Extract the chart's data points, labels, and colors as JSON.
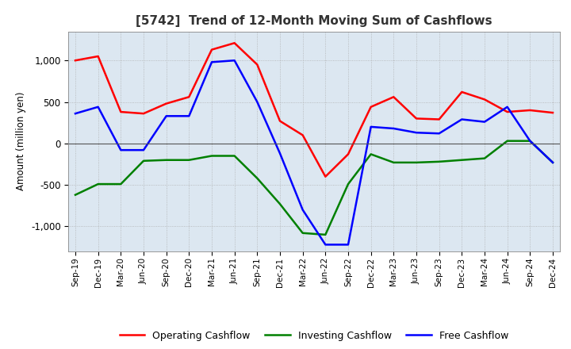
{
  "title": "[5742]  Trend of 12-Month Moving Sum of Cashflows",
  "ylabel": "Amount (million yen)",
  "ylim": [
    -1300,
    1350
  ],
  "yticks": [
    -1000,
    -500,
    0,
    500,
    1000
  ],
  "plot_background": "#dce7f1",
  "x_labels": [
    "Sep-19",
    "Dec-19",
    "Mar-20",
    "Jun-20",
    "Sep-20",
    "Dec-20",
    "Mar-21",
    "Jun-21",
    "Sep-21",
    "Dec-21",
    "Mar-22",
    "Jun-22",
    "Sep-22",
    "Dec-22",
    "Mar-23",
    "Jun-23",
    "Sep-23",
    "Dec-23",
    "Mar-24",
    "Jun-24",
    "Sep-24",
    "Dec-24"
  ],
  "operating": [
    1000,
    1050,
    380,
    360,
    480,
    560,
    1130,
    1210,
    950,
    270,
    100,
    -400,
    -130,
    440,
    560,
    300,
    290,
    620,
    530,
    380,
    400,
    370
  ],
  "investing": [
    -620,
    -490,
    -490,
    -210,
    -200,
    -200,
    -150,
    -150,
    -420,
    -730,
    -1080,
    -1100,
    -490,
    -130,
    -230,
    -230,
    -220,
    -200,
    -180,
    30,
    30,
    -230
  ],
  "free": [
    360,
    440,
    -80,
    -80,
    330,
    330,
    980,
    1000,
    500,
    -120,
    -800,
    -1220,
    -1220,
    200,
    180,
    130,
    120,
    290,
    260,
    440,
    30,
    -230
  ],
  "operating_color": "#ff0000",
  "investing_color": "#008000",
  "free_color": "#0000ff",
  "line_width": 1.8,
  "grid_color": "#aaaaaa",
  "legend_labels": [
    "Operating Cashflow",
    "Investing Cashflow",
    "Free Cashflow"
  ]
}
